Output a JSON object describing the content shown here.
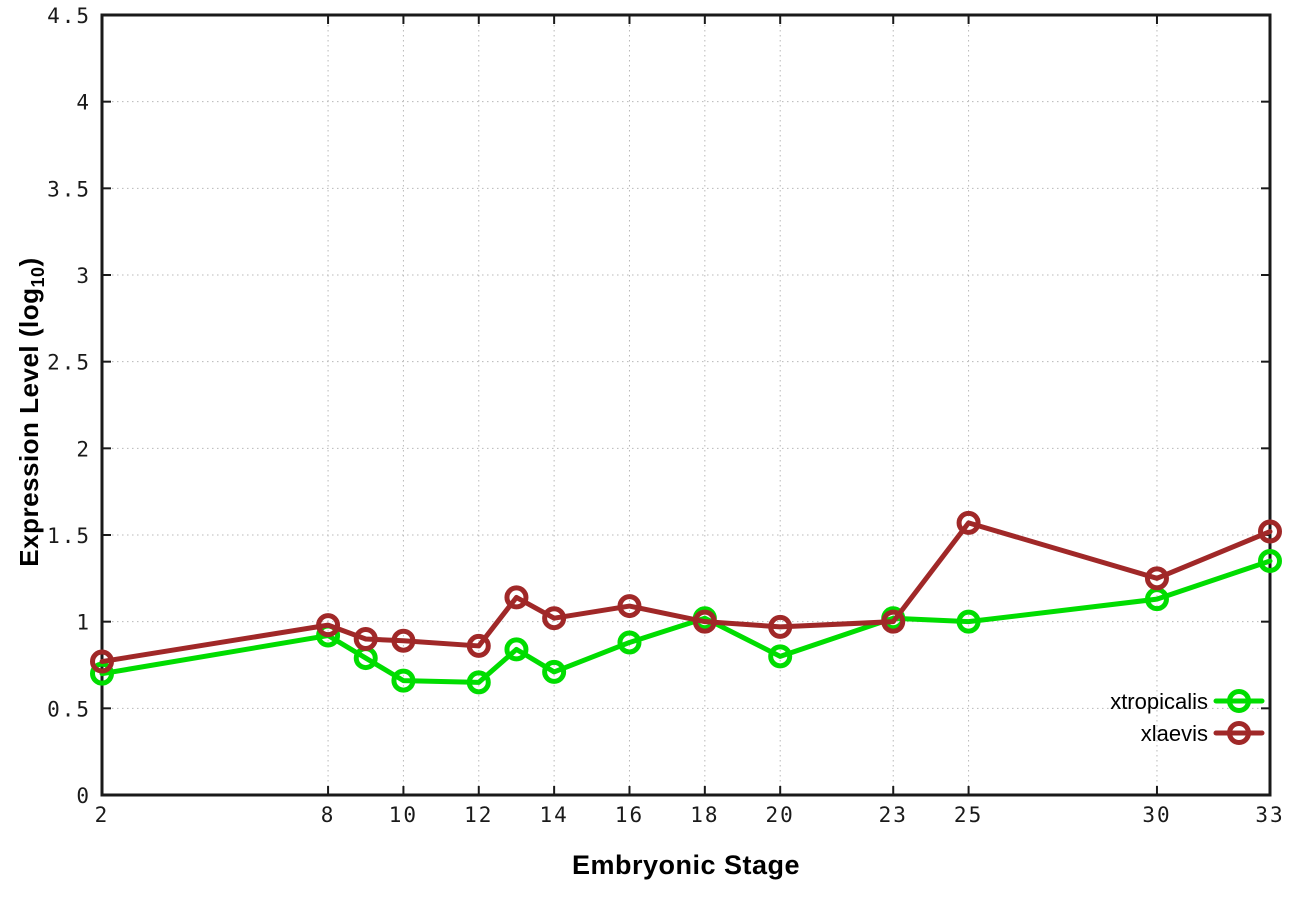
{
  "figure": {
    "ylabel_prefix": "Expression Level (log",
    "ylabel_sub": "10",
    "ylabel_suffix": ")"
  },
  "chart_data": {
    "type": "line",
    "title": "",
    "xlabel": "Embryonic Stage",
    "ylabel": "Expression Level (log10)",
    "xlim": [
      2,
      33
    ],
    "ylim": [
      0,
      4.5
    ],
    "grid": true,
    "legend_position": "bottom-right",
    "x_tick_values": [
      2,
      8,
      10,
      12,
      14,
      16,
      18,
      20,
      23,
      25,
      30,
      33
    ],
    "x_tick_labels": [
      "2",
      "8",
      "10",
      "12",
      "14",
      "16",
      "18",
      "20",
      "23",
      "25",
      "30",
      "33"
    ],
    "y_tick_values": [
      0,
      0.5,
      1,
      1.5,
      2,
      2.5,
      3,
      3.5,
      4,
      4.5
    ],
    "y_tick_labels": [
      "0",
      "0.5",
      "1",
      "1.5",
      "2",
      "2.5",
      "3",
      "3.5",
      "4",
      "4.5"
    ],
    "x": [
      2,
      8,
      9,
      10,
      12,
      13,
      14,
      16,
      18,
      20,
      23,
      25,
      30,
      33
    ],
    "series": [
      {
        "name": "xtropicalis",
        "color": "#00dd00",
        "values": [
          0.7,
          0.92,
          0.79,
          0.66,
          0.65,
          0.84,
          0.71,
          0.88,
          1.02,
          0.8,
          1.02,
          1.0,
          1.13,
          1.35
        ]
      },
      {
        "name": "xlaevis",
        "color": "#a02828",
        "values": [
          0.77,
          0.98,
          0.9,
          0.89,
          0.86,
          1.14,
          1.02,
          1.09,
          1.0,
          0.97,
          1.0,
          1.57,
          1.25,
          1.52
        ]
      }
    ],
    "grid_color": "#b8b8b8",
    "border_color": "#1a1a1a"
  }
}
